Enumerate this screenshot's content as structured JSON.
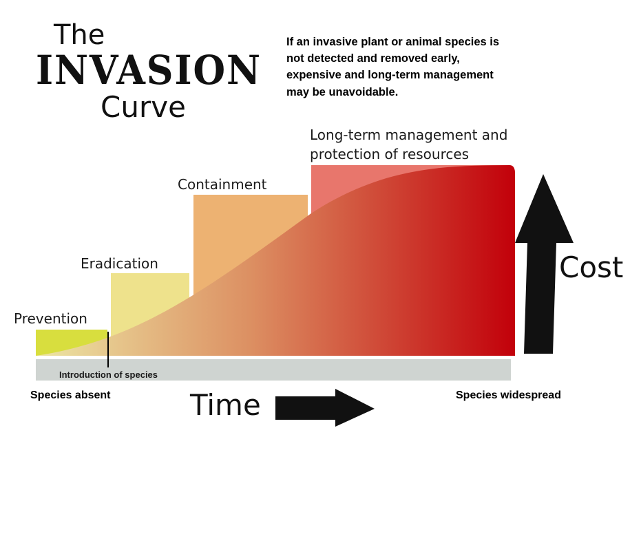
{
  "title": {
    "line1": "The",
    "line2": "INVASION",
    "line3": "Curve"
  },
  "description": [
    "If an invasive plant or animal species is",
    "not detected and removed early,",
    "expensive and long-term management",
    "may be unavoidable."
  ],
  "stages": [
    {
      "label": "Prevention",
      "color": "#d8de3e"
    },
    {
      "label": "Eradication",
      "color": "#eee28c"
    },
    {
      "label": "Containment",
      "color": "#edb272"
    },
    {
      "label_line1": "Long-term management and",
      "label_line2": "protection of resources",
      "color": "#e8766c"
    }
  ],
  "timeline": {
    "introduction_label": "Introduction of species",
    "start_label": "Species absent",
    "end_label": "Species widespread",
    "bar_color": "#cfd4d1"
  },
  "axes": {
    "time_label": "Time",
    "cost_label": "Cost"
  },
  "curve_colors": {
    "start": "#ece6a4",
    "middle": "#dc8f62",
    "end": "#c2000a"
  }
}
